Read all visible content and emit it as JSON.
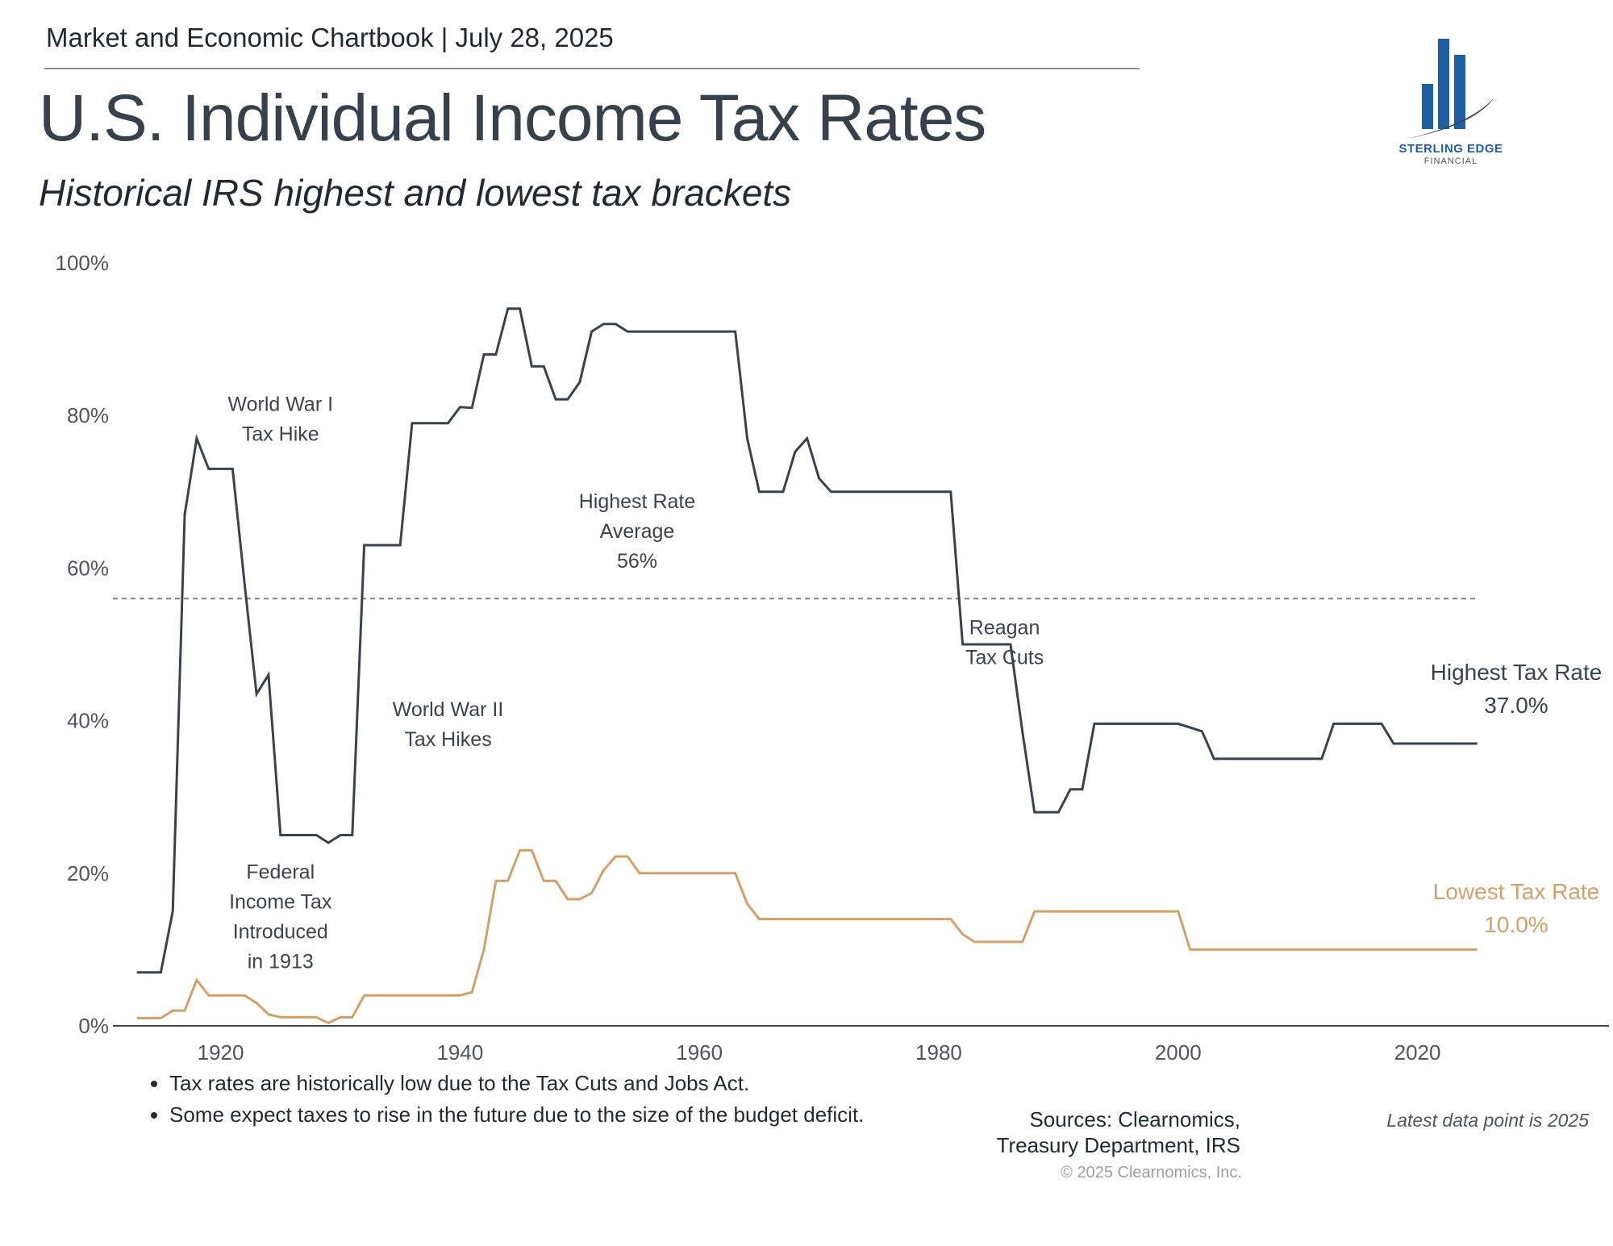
{
  "header": {
    "chartbook": "Market and Economic Chartbook | July 28, 2025",
    "title": "U.S. Individual Income Tax Rates",
    "subtitle": "Historical IRS highest and lowest tax brackets"
  },
  "logo": {
    "name": "STERLING EDGE",
    "sub": "FINANCIAL",
    "color": "#1e5fa4"
  },
  "colors": {
    "highest": "#37434e",
    "lowest": "#d4a06a",
    "axis": "#3a444e",
    "average": "#7a828a"
  },
  "chart_data": {
    "type": "line",
    "x_range": [
      1913,
      2025
    ],
    "xlim": [
      1911,
      2036
    ],
    "ylim": [
      0,
      100
    ],
    "y_ticks": [
      0,
      20,
      40,
      60,
      80,
      100
    ],
    "y_tick_labels": [
      "0%",
      "20%",
      "40%",
      "60%",
      "80%",
      "100%"
    ],
    "x_ticks": [
      1920,
      1940,
      1960,
      1980,
      2000,
      2020
    ],
    "x_tick_labels": [
      "1920",
      "1940",
      "1960",
      "1980",
      "2000",
      "2020"
    ],
    "average": {
      "value": 56,
      "label_lines": [
        "Highest Rate",
        "Average",
        "56%"
      ]
    },
    "series": [
      {
        "name": "Highest Tax Rate",
        "end_label": "37.0%",
        "points": [
          [
            1913,
            7
          ],
          [
            1915,
            7
          ],
          [
            1916,
            15
          ],
          [
            1917,
            67
          ],
          [
            1918,
            77
          ],
          [
            1919,
            73
          ],
          [
            1921,
            73
          ],
          [
            1922,
            58
          ],
          [
            1923,
            43.5
          ],
          [
            1924,
            46
          ],
          [
            1925,
            25
          ],
          [
            1928,
            25
          ],
          [
            1929,
            24
          ],
          [
            1930,
            25
          ],
          [
            1931,
            25
          ],
          [
            1932,
            63
          ],
          [
            1935,
            63
          ],
          [
            1936,
            79
          ],
          [
            1939,
            79
          ],
          [
            1940,
            81.1
          ],
          [
            1941,
            81
          ],
          [
            1942,
            88
          ],
          [
            1943,
            88
          ],
          [
            1944,
            94
          ],
          [
            1945,
            94
          ],
          [
            1946,
            86.45
          ],
          [
            1947,
            86.45
          ],
          [
            1948,
            82.13
          ],
          [
            1949,
            82.13
          ],
          [
            1950,
            84.36
          ],
          [
            1951,
            91
          ],
          [
            1952,
            92
          ],
          [
            1953,
            92
          ],
          [
            1954,
            91
          ],
          [
            1963,
            91
          ],
          [
            1964,
            77
          ],
          [
            1965,
            70
          ],
          [
            1967,
            70
          ],
          [
            1968,
            75.25
          ],
          [
            1969,
            77
          ],
          [
            1970,
            71.75
          ],
          [
            1971,
            70
          ],
          [
            1981,
            70
          ],
          [
            1982,
            50
          ],
          [
            1986,
            50
          ],
          [
            1987,
            38.5
          ],
          [
            1988,
            28
          ],
          [
            1990,
            28
          ],
          [
            1991,
            31
          ],
          [
            1992,
            31
          ],
          [
            1993,
            39.6
          ],
          [
            2000,
            39.6
          ],
          [
            2001,
            39.1
          ],
          [
            2002,
            38.6
          ],
          [
            2003,
            35
          ],
          [
            2012,
            35
          ],
          [
            2013,
            39.6
          ],
          [
            2017,
            39.6
          ],
          [
            2018,
            37
          ],
          [
            2025,
            37
          ]
        ]
      },
      {
        "name": "Lowest Tax Rate",
        "end_label": "10.0%",
        "points": [
          [
            1913,
            1
          ],
          [
            1915,
            1
          ],
          [
            1916,
            2
          ],
          [
            1917,
            2
          ],
          [
            1918,
            6
          ],
          [
            1919,
            4
          ],
          [
            1922,
            4
          ],
          [
            1923,
            3
          ],
          [
            1924,
            1.5
          ],
          [
            1925,
            1.125
          ],
          [
            1928,
            1.125
          ],
          [
            1929,
            0.375
          ],
          [
            1930,
            1.125
          ],
          [
            1931,
            1.125
          ],
          [
            1932,
            4
          ],
          [
            1940,
            4
          ],
          [
            1941,
            4.4
          ],
          [
            1942,
            10
          ],
          [
            1943,
            19
          ],
          [
            1944,
            19
          ],
          [
            1945,
            23
          ],
          [
            1946,
            23
          ],
          [
            1947,
            19
          ],
          [
            1948,
            19
          ],
          [
            1949,
            16.6
          ],
          [
            1950,
            16.6
          ],
          [
            1951,
            17.4
          ],
          [
            1952,
            20.4
          ],
          [
            1953,
            22.2
          ],
          [
            1954,
            22.2
          ],
          [
            1955,
            20
          ],
          [
            1963,
            20
          ],
          [
            1964,
            16
          ],
          [
            1965,
            14
          ],
          [
            1981,
            14
          ],
          [
            1982,
            12
          ],
          [
            1983,
            11
          ],
          [
            1987,
            11
          ],
          [
            1988,
            15
          ],
          [
            2000,
            15
          ],
          [
            2001,
            10
          ],
          [
            2025,
            10
          ]
        ]
      }
    ],
    "annotations": [
      {
        "id": "ww1",
        "year": 1925,
        "value": 80.6,
        "lines": [
          "World War I",
          "Tax Hike"
        ]
      },
      {
        "id": "ww2",
        "year": 1939,
        "value": 40.6,
        "lines": [
          "World War II",
          "Tax Hikes"
        ]
      },
      {
        "id": "federal",
        "year": 1925,
        "value": 19.3,
        "lines": [
          "Federal",
          "Income Tax",
          "Introduced",
          "in 1913"
        ]
      },
      {
        "id": "reagan",
        "year": 1985.5,
        "value": 51.3,
        "lines": [
          "Reagan",
          "Tax Cuts"
        ]
      }
    ],
    "highest_label": "Highest Tax Rate",
    "lowest_label": "Lowest Tax Rate"
  },
  "bullets": [
    "Tax rates are historically low due to the Tax Cuts and Jobs Act.",
    "Some expect taxes to rise in the future due to the size of the budget deficit."
  ],
  "sources": {
    "line1": "Sources: Clearnomics,",
    "line2": "Treasury Department, IRS"
  },
  "copyright": "© 2025 Clearnomics, Inc.",
  "latest_note": "Latest data point is 2025"
}
